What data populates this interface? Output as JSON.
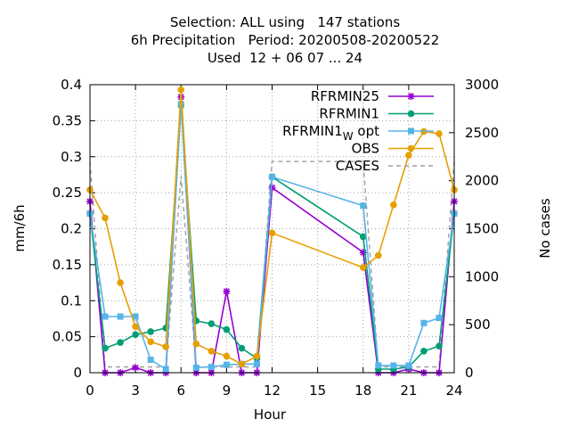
{
  "header": {
    "title_line1": "Selection: ALL using   147 stations",
    "title_line2": "6h Precipitation   Period: 20200508-20200522",
    "title_line3": "Used  12 + 06 07 ... 24"
  },
  "chart_data": {
    "type": "line",
    "xlabel": "Hour",
    "ylabel": "mm/6h",
    "y2label": "No cases",
    "xlim": [
      0,
      24
    ],
    "ylim": [
      0,
      0.4
    ],
    "y2lim": [
      0,
      3000
    ],
    "x_ticks": [
      0,
      3,
      6,
      9,
      12,
      15,
      18,
      21,
      24
    ],
    "y_ticks": [
      "0",
      "0.05",
      "0.1",
      "0.15",
      "0.2",
      "0.25",
      "0.3",
      "0.35",
      "0.4"
    ],
    "y2_ticks": [
      "0",
      "500",
      "1000",
      "1500",
      "2000",
      "2500",
      "3000"
    ],
    "grid": true,
    "legend_position": "top-right",
    "series": [
      {
        "name": "RFRMIN25",
        "color": "#9400d3",
        "marker": "star",
        "x": [
          0,
          1,
          2,
          3,
          4,
          5,
          6,
          7,
          8,
          9,
          10,
          11,
          12,
          18,
          19,
          20,
          21,
          22,
          23,
          24
        ],
        "y": [
          0.238,
          0.0,
          0.0,
          0.007,
          0.0,
          0.0,
          0.383,
          0.0,
          0.0,
          0.113,
          0.0,
          0.0,
          0.257,
          0.167,
          0.0,
          0.0,
          0.005,
          0.0,
          0.0,
          0.238
        ]
      },
      {
        "name": "RFRMIN1",
        "color": "#009e73",
        "marker": "filled-circle",
        "x": [
          0,
          1,
          2,
          3,
          4,
          5,
          6,
          7,
          8,
          9,
          10,
          11,
          12,
          18,
          19,
          20,
          21,
          22,
          23,
          24
        ],
        "y": [
          0.221,
          0.034,
          0.042,
          0.053,
          0.057,
          0.062,
          0.371,
          0.072,
          0.068,
          0.06,
          0.034,
          0.02,
          0.272,
          0.189,
          0.005,
          0.005,
          0.008,
          0.03,
          0.037,
          0.221
        ]
      },
      {
        "name": "RFRMIN1",
        "name_subscript": "W",
        "name_suffix": "opt",
        "color": "#56b4e9",
        "marker": "filled-square",
        "x": [
          0,
          1,
          2,
          3,
          4,
          5,
          6,
          7,
          8,
          9,
          10,
          11,
          12,
          18,
          19,
          20,
          21,
          22,
          23,
          24
        ],
        "y": [
          0.221,
          0.078,
          0.078,
          0.078,
          0.018,
          0.005,
          0.373,
          0.007,
          0.008,
          0.011,
          0.012,
          0.012,
          0.272,
          0.232,
          0.01,
          0.01,
          0.01,
          0.069,
          0.076,
          0.221
        ]
      },
      {
        "name": "OBS",
        "color": "#e69f00",
        "marker": "filled-circle",
        "x": [
          0,
          1,
          2,
          3,
          4,
          5,
          6,
          7,
          8,
          9,
          10,
          11,
          12,
          18,
          19,
          20,
          21,
          22,
          23,
          24
        ],
        "y": [
          0.254,
          0.215,
          0.125,
          0.064,
          0.043,
          0.036,
          0.393,
          0.04,
          0.03,
          0.023,
          0.012,
          0.023,
          0.194,
          0.146,
          0.163,
          0.233,
          0.302,
          0.335,
          0.332,
          0.254
        ]
      },
      {
        "name": "CASES",
        "color": "#a0a0a0",
        "dashed": true,
        "axis": "y2",
        "x": [
          0,
          1,
          2,
          3,
          4,
          5,
          6,
          7,
          8,
          9,
          10,
          11,
          12,
          18,
          19,
          20,
          21,
          22,
          23,
          24
        ],
        "y": [
          2200,
          60,
          60,
          60,
          60,
          60,
          2050,
          60,
          60,
          60,
          60,
          60,
          2200,
          2200,
          60,
          60,
          60,
          60,
          60,
          2200
        ]
      }
    ]
  }
}
